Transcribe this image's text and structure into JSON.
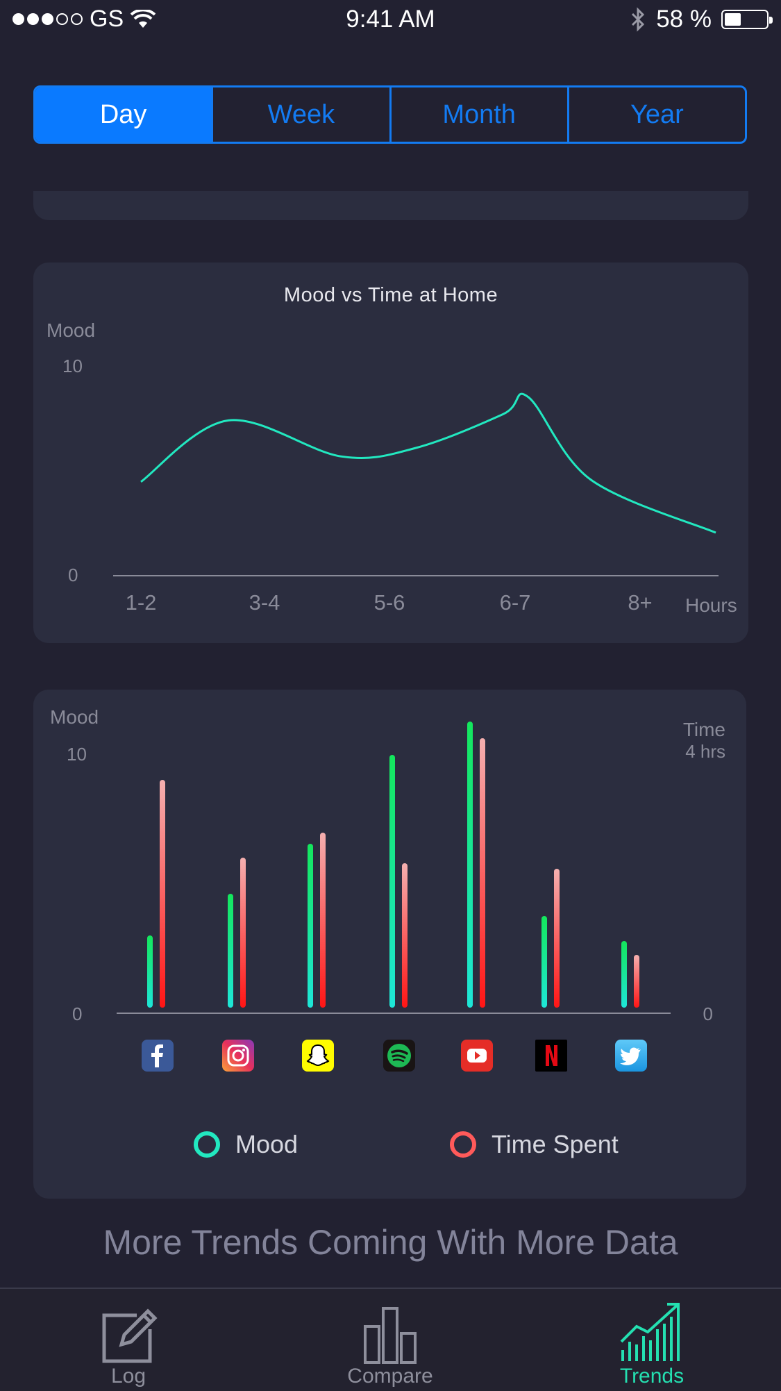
{
  "status_bar": {
    "carrier": "GS",
    "time": "9:41 AM",
    "battery_percent": "58 %",
    "battery_level": 0.58,
    "signal_bars_filled": 3,
    "signal_bars_total": 5
  },
  "segmented_control": {
    "items": [
      "Day",
      "Week",
      "Month",
      "Year"
    ],
    "selected": "Day",
    "accent_color": "#137bf2"
  },
  "line_chart": {
    "chart_data": {
      "type": "line",
      "title": "Mood vs Time at Home",
      "ylabel": "Mood",
      "xlabel": "Hours",
      "ylim": [
        0,
        10
      ],
      "yticks": [
        "10",
        "0"
      ],
      "categories": [
        "1-2",
        "3-4",
        "5-6",
        "6-7",
        "8+"
      ],
      "series": [
        {
          "color": "#22e8c0",
          "points": [
            {
              "x": 0.0,
              "y": 4.4
            },
            {
              "x": 0.7,
              "y": 7.3
            },
            {
              "x": 1.6,
              "y": 5.6
            },
            {
              "x": 2.2,
              "y": 6.0
            },
            {
              "x": 2.9,
              "y": 7.6
            },
            {
              "x": 3.1,
              "y": 8.4
            },
            {
              "x": 3.6,
              "y": 4.5
            },
            {
              "x": 4.6,
              "y": 2.0
            }
          ]
        }
      ]
    }
  },
  "bar_chart": {
    "chart_data": {
      "type": "bar",
      "ylabel_left": "Mood",
      "ylabel_right": "Time",
      "right_max_label": "4 hrs",
      "left_ticks": [
        "10",
        "0"
      ],
      "right_ticks": [
        "0"
      ],
      "ylim": [
        0,
        10
      ],
      "categories": [
        "Facebook",
        "Instagram",
        "Snapchat",
        "Spotify",
        "YouTube",
        "Netflix",
        "Twitter"
      ],
      "series": [
        {
          "name": "Mood",
          "values": [
            2.6,
            4.1,
            5.9,
            9.1,
            10.3,
            3.3,
            2.4
          ],
          "color_top": "#14e65c",
          "color_bottom": "#1ee6d8"
        },
        {
          "name": "Time Spent",
          "values": [
            8.2,
            5.4,
            6.3,
            5.2,
            9.7,
            5.0,
            1.9
          ],
          "color_top": "#f5b0b0",
          "color_bottom": "#ff1515"
        }
      ]
    },
    "legend": [
      {
        "label": "Mood"
      },
      {
        "label": "Time Spent"
      }
    ]
  },
  "footer_message": "More Trends Coming With More Data",
  "tab_bar": {
    "items": [
      {
        "label": "Log",
        "icon": "pencil-square-icon"
      },
      {
        "label": "Compare",
        "icon": "bars-icon"
      },
      {
        "label": "Trends",
        "icon": "trend-up-icon"
      }
    ],
    "selected": "Trends",
    "active_color": "#24e0b1"
  }
}
